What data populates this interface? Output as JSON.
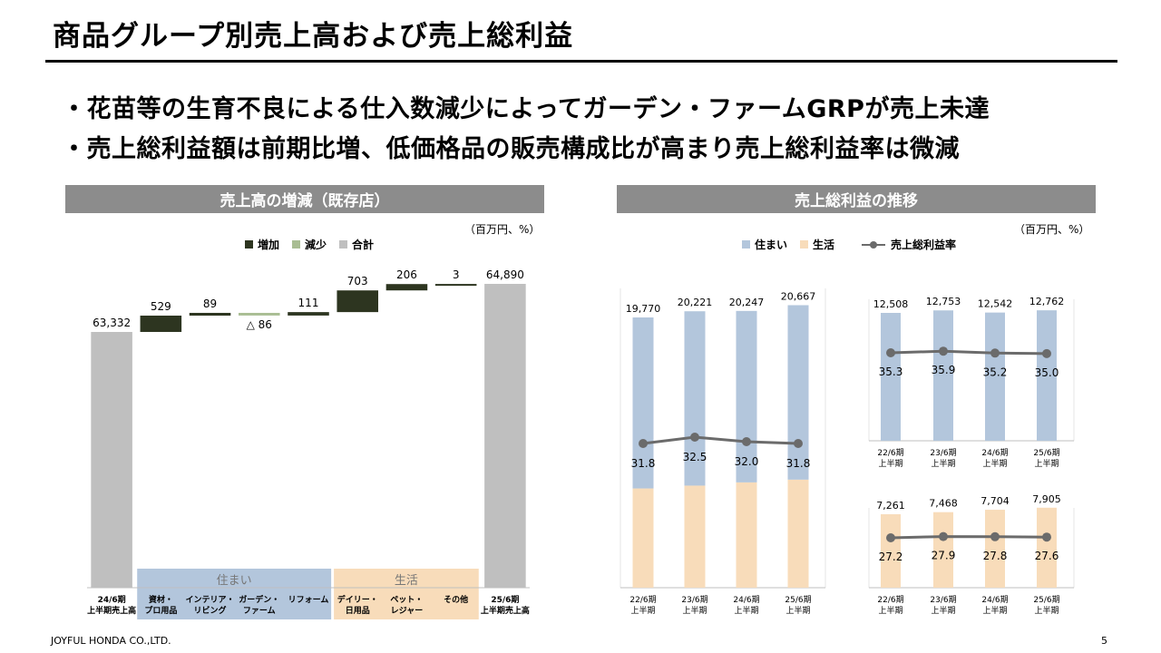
{
  "page": {
    "title": "商品グループ別売上高および売上総利益",
    "bullets": [
      "・花苗等の生育不良による仕入数減少によってガーデン・ファームGRPが売上未達",
      "・売上総利益額は前期比増、低価格品の販売構成比が高まり売上総利益率は微減"
    ],
    "footer_company": "JOYFUL HONDA CO.,LTD.",
    "page_number": "5"
  },
  "left_panel": {
    "header": "売上高の増減（既存店）",
    "unit": "（百万円、%）",
    "legend": [
      "増加",
      "減少",
      "合計"
    ],
    "group_labels": [
      "住まい",
      "生活"
    ]
  },
  "right_panel": {
    "header": "売上総利益の推移",
    "unit": "（百万円、%）",
    "legend": [
      "住まい",
      "生活",
      "売上総利益率"
    ]
  },
  "colors": {
    "increase": "#2d3520",
    "decrease": "#a9bd93",
    "total": "#bfbfbf",
    "sumai": "#b3c6dc",
    "seikatsu": "#f8dcba",
    "rate_line": "#6b6b6b",
    "header_bg": "#8c8c8c"
  },
  "chart_data": [
    {
      "type": "bar",
      "subtype": "waterfall",
      "title": "売上高の増減（既存店）",
      "categories": [
        "24/6期\n上半期売上高",
        "資材・\nプロ用品",
        "インテリア・\nリビング",
        "ガーデン・\nファーム",
        "リフォーム",
        "デイリー・\n日用品",
        "ペット・\nレジャー",
        "その他",
        "25/6期\n上半期売上高"
      ],
      "values": [
        63332,
        529,
        89,
        -86,
        111,
        703,
        206,
        3,
        64890
      ],
      "kinds": [
        "total",
        "increase",
        "increase",
        "decrease",
        "increase",
        "increase",
        "increase",
        "increase",
        "total"
      ],
      "data_labels": [
        "63,332",
        "529",
        "89",
        "△ 86",
        "111",
        "703",
        "206",
        "3",
        "64,890"
      ],
      "groups": [
        {
          "name": "住まい",
          "categories": [
            1,
            2,
            3,
            4
          ]
        },
        {
          "name": "生活",
          "categories": [
            5,
            6,
            7
          ]
        }
      ],
      "unit": "百万円"
    },
    {
      "type": "bar",
      "subtype": "stacked+line",
      "categories": [
        "22/6期\n上半期",
        "23/6期\n上半期",
        "24/6期\n上半期",
        "25/6期\n上半期"
      ],
      "series": [
        {
          "name": "生活",
          "values": [
            7261,
            7468,
            7704,
            7905
          ]
        },
        {
          "name": "住まい",
          "values": [
            12508,
            12753,
            12542,
            12762
          ]
        }
      ],
      "totals": [
        "19,770",
        "20,221",
        "20,247",
        "20,667"
      ],
      "line": {
        "name": "売上総利益率",
        "values": [
          31.8,
          32.5,
          32.0,
          31.8
        ]
      }
    },
    {
      "type": "bar",
      "group": "住まい",
      "categories": [
        "22/6期\n上半期",
        "23/6期\n上半期",
        "24/6期\n上半期",
        "25/6期\n上半期"
      ],
      "values": [
        12508,
        12753,
        12542,
        12762
      ],
      "data_labels": [
        "12,508",
        "12,753",
        "12,542",
        "12,762"
      ],
      "line": {
        "name": "売上総利益率",
        "values": [
          35.3,
          35.9,
          35.2,
          35.0
        ]
      }
    },
    {
      "type": "bar",
      "group": "生活",
      "categories": [
        "22/6期\n上半期",
        "23/6期\n上半期",
        "24/6期\n上半期",
        "25/6期\n上半期"
      ],
      "values": [
        7261,
        7468,
        7704,
        7905
      ],
      "data_labels": [
        "7,261",
        "7,468",
        "7,704",
        "7,905"
      ],
      "line": {
        "name": "売上総利益率",
        "values": [
          27.2,
          27.9,
          27.8,
          27.6
        ]
      }
    }
  ]
}
